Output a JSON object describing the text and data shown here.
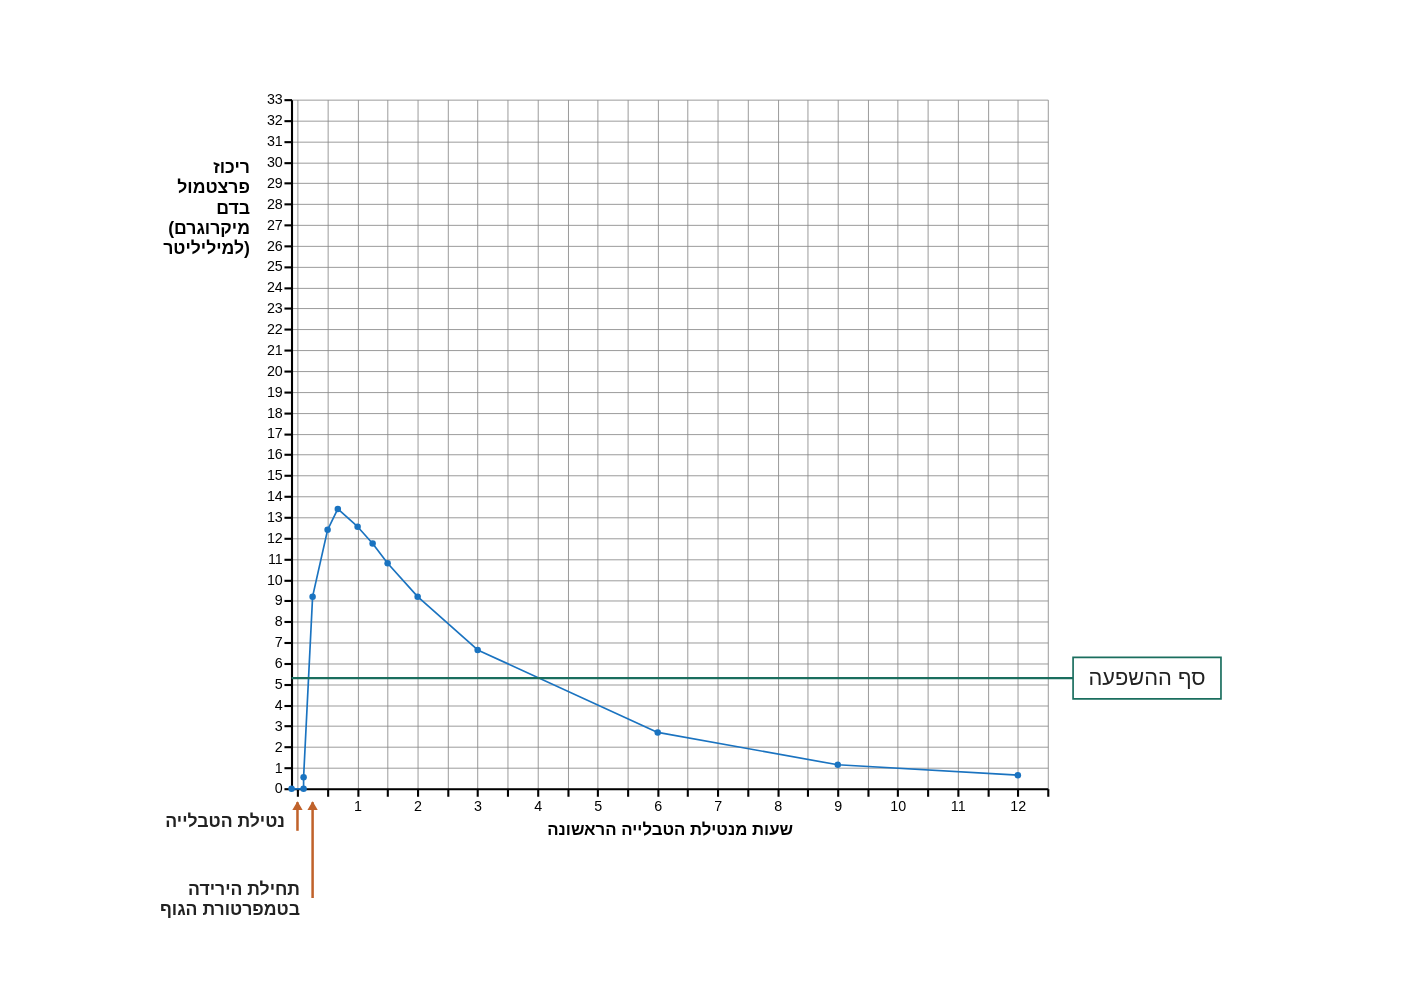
{
  "chart_data": {
    "type": "line",
    "xlabel": "שעות מנטילת הטבלייה הראשונה",
    "ylabel": "ריכוז פרצטמול בדם (מיקרוגרם למיליליטר)",
    "x": [
      -0.1,
      0.1,
      0.1,
      0.25,
      0.5,
      0.67,
      1,
      1.25,
      1.5,
      2,
      3,
      6,
      9,
      12
    ],
    "series": [
      {
        "color": "#1a73c0",
        "values": [
          0,
          0,
          0.55,
          9.2,
          12.4,
          13.4,
          12.55,
          11.75,
          10.8,
          9.2,
          6.65,
          2.7,
          1.15,
          0.65
        ]
      }
    ],
    "xlim": [
      -0.1,
      12.5
    ],
    "ylim": [
      0,
      33
    ],
    "xticks": [
      {
        "value": 0,
        "label": null
      },
      {
        "value": 0.5,
        "label": null
      },
      1,
      {
        "value": 1.5,
        "label": null
      },
      2,
      {
        "value": 2.5,
        "label": null
      },
      3,
      {
        "value": 3.5,
        "label": null
      },
      4,
      {
        "value": 4.5,
        "label": null
      },
      5,
      {
        "value": 5.5,
        "label": null
      },
      6,
      {
        "value": 6.5,
        "label": null
      },
      7,
      {
        "value": 7.5,
        "label": null
      },
      8,
      {
        "value": 8.5,
        "label": null
      },
      9,
      {
        "value": 9.5,
        "label": null
      },
      10,
      {
        "value": 10.5,
        "label": null
      },
      11,
      {
        "value": 11.5,
        "label": null
      },
      12,
      {
        "value": 12.5,
        "label": null
      }
    ],
    "yticks": [
      0,
      1,
      2,
      3,
      4,
      5,
      6,
      7,
      8,
      9,
      10,
      11,
      12,
      13,
      14,
      15,
      16,
      17,
      18,
      19,
      20,
      21,
      22,
      23,
      24,
      25,
      26,
      27,
      28,
      29,
      30,
      31,
      32,
      33
    ],
    "ref_lines": [
      {
        "axis": "y",
        "value": 5.3,
        "label": "סף ההשפעה",
        "color": "#1a6e5e"
      }
    ],
    "annotations": [
      "נטילת הטבלייה",
      "תחילת הירידה בטמפרטורת הגוף"
    ],
    "grid": true,
    "marker": "circle",
    "line_style": "solid"
  }
}
